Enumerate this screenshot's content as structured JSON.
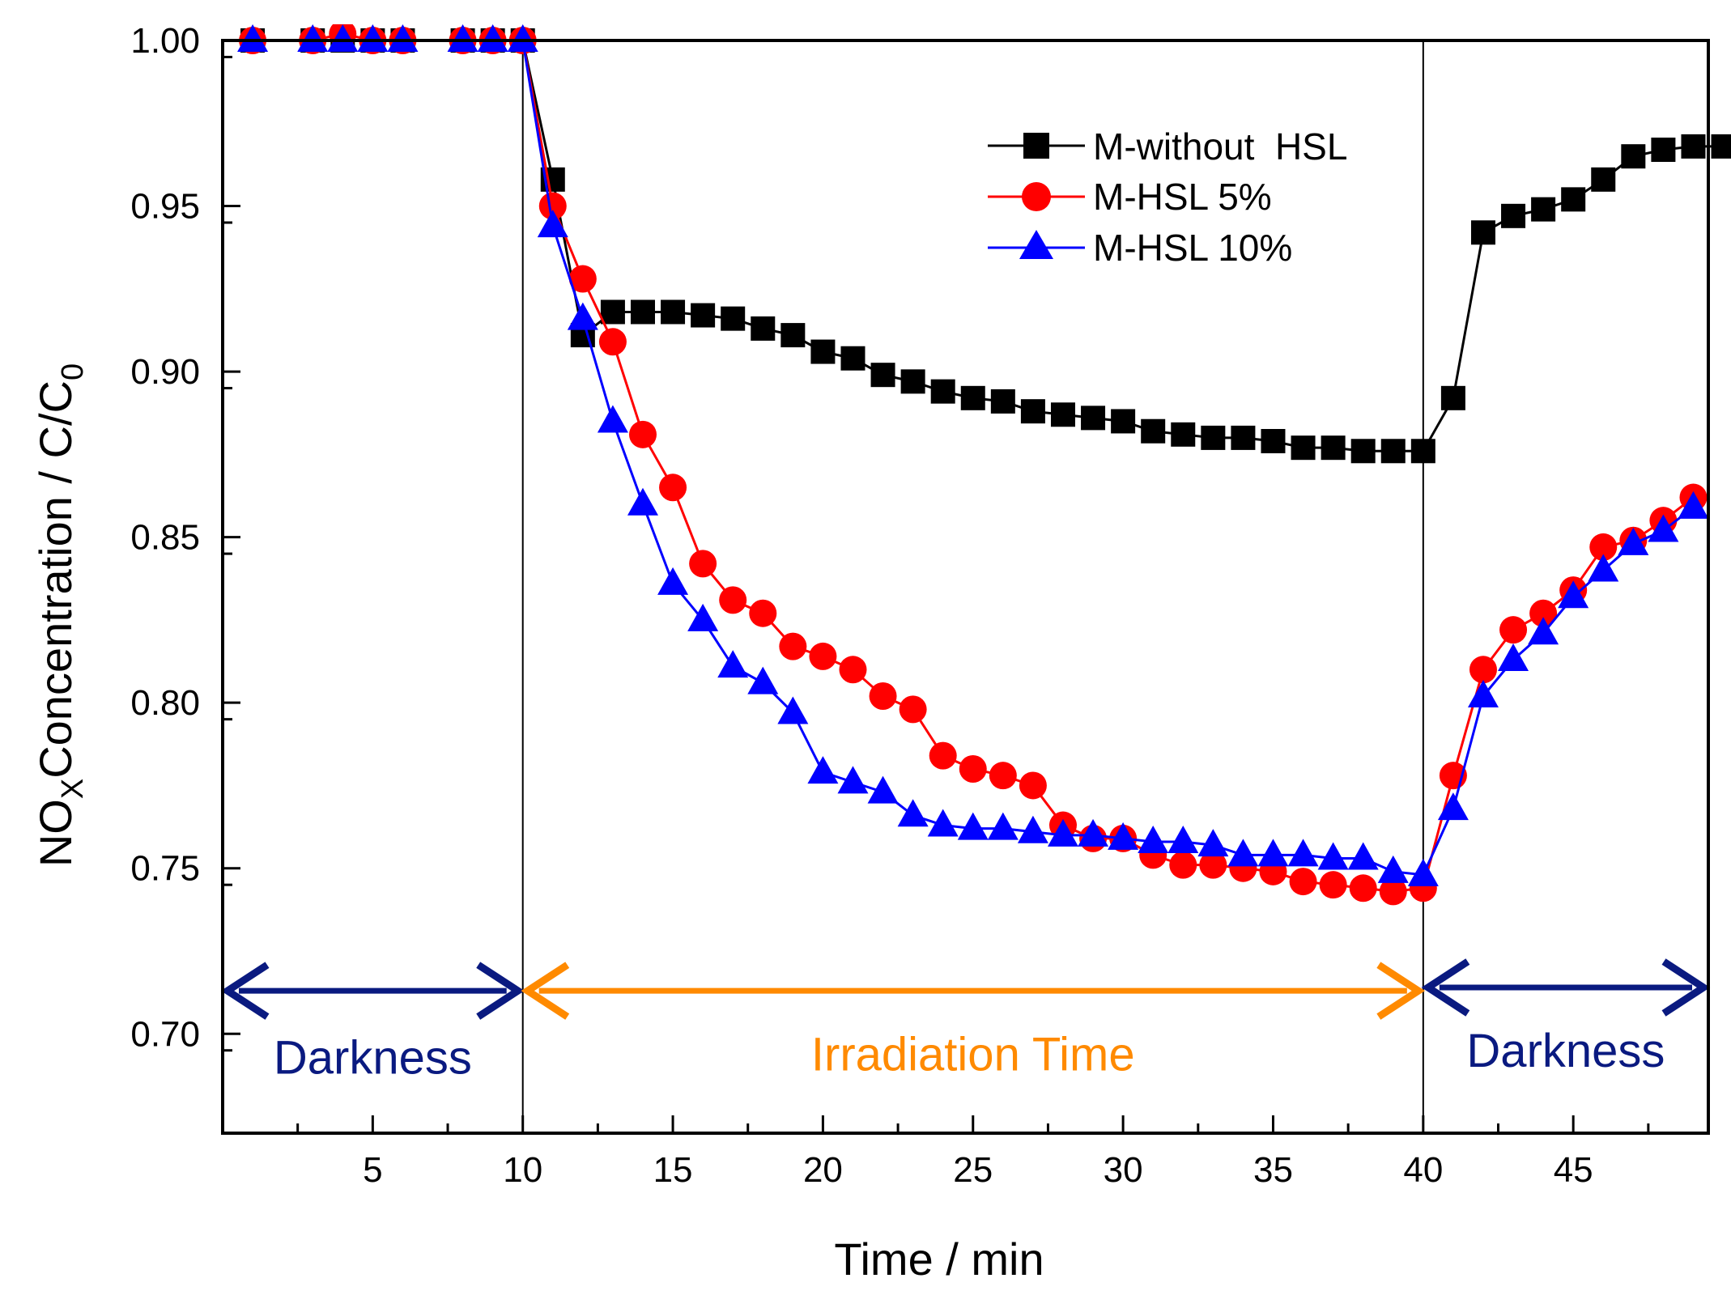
{
  "chart_data": {
    "type": "line",
    "title": "",
    "xlabel": "Time / min",
    "ylabel": {
      "prefix": "NO",
      "sub1": "X",
      "middle": "Concentration / C/C",
      "sub2": "0"
    },
    "xlim": [
      0,
      49.5
    ],
    "ylim": [
      0.67,
      1.0
    ],
    "xticks": [
      5,
      10,
      15,
      20,
      25,
      30,
      35,
      40,
      45
    ],
    "yticks": [
      0.7,
      0.75,
      0.8,
      0.85,
      0.9,
      0.95,
      1.0
    ],
    "xtick_labels": [
      "5",
      "10",
      "15",
      "20",
      "25",
      "30",
      "35",
      "40",
      "45"
    ],
    "ytick_labels": [
      "0.70",
      "0.75",
      "0.80",
      "0.85",
      "0.90",
      "0.95",
      "1.00"
    ],
    "vlines": [
      10,
      40
    ],
    "series": [
      {
        "name": "M-without  HSL",
        "color": "#000000",
        "marker": "square",
        "x": [
          1,
          3,
          4,
          5,
          6,
          8,
          9,
          10,
          11,
          12,
          13,
          14,
          15,
          16,
          17,
          18,
          19,
          20,
          21,
          22,
          23,
          24,
          25,
          26,
          27,
          28,
          29,
          30,
          31,
          32,
          33,
          34,
          35,
          36,
          37,
          38,
          39,
          40,
          41,
          42,
          43,
          44,
          45,
          46,
          47,
          48,
          49,
          50
        ],
        "y": [
          1.0,
          1.0,
          1.0,
          1.0,
          1.0,
          1.0,
          1.0,
          1.0,
          0.958,
          0.911,
          0.918,
          0.918,
          0.918,
          0.917,
          0.916,
          0.913,
          0.911,
          0.906,
          0.904,
          0.899,
          0.897,
          0.894,
          0.892,
          0.891,
          0.888,
          0.887,
          0.886,
          0.885,
          0.882,
          0.881,
          0.88,
          0.88,
          0.879,
          0.877,
          0.877,
          0.876,
          0.876,
          0.876,
          0.892,
          0.942,
          0.947,
          0.949,
          0.952,
          0.958,
          0.965,
          0.967,
          0.968,
          0.968
        ]
      },
      {
        "name": "M-HSL 5%",
        "color": "#ff0000",
        "marker": "circle",
        "x": [
          1,
          3,
          4,
          5,
          6,
          8,
          9,
          10,
          11,
          12,
          13,
          14,
          15,
          16,
          17,
          18,
          19,
          20,
          21,
          22,
          23,
          24,
          25,
          26,
          27,
          28,
          29,
          30,
          31,
          32,
          33,
          34,
          35,
          36,
          37,
          38,
          39,
          40,
          41,
          42,
          43,
          44,
          45,
          46,
          47,
          48,
          49
        ],
        "y": [
          1.0,
          1.0,
          1.002,
          1.0,
          1.0,
          1.0,
          1.0,
          1.0,
          0.95,
          0.928,
          0.909,
          0.881,
          0.865,
          0.842,
          0.831,
          0.827,
          0.817,
          0.814,
          0.81,
          0.802,
          0.798,
          0.784,
          0.78,
          0.778,
          0.775,
          0.763,
          0.759,
          0.759,
          0.754,
          0.751,
          0.751,
          0.75,
          0.749,
          0.746,
          0.745,
          0.744,
          0.743,
          0.744,
          0.778,
          0.81,
          0.822,
          0.827,
          0.834,
          0.847,
          0.849,
          0.855,
          0.862
        ]
      },
      {
        "name": "M-HSL 10%",
        "color": "#0000ff",
        "marker": "triangle",
        "x": [
          1,
          3,
          4,
          5,
          6,
          8,
          9,
          10,
          11,
          12,
          13,
          14,
          15,
          16,
          17,
          18,
          19,
          20,
          21,
          22,
          23,
          24,
          25,
          26,
          27,
          28,
          29,
          30,
          31,
          32,
          33,
          34,
          35,
          36,
          37,
          38,
          39,
          40,
          41,
          42,
          43,
          44,
          45,
          46,
          47,
          48,
          49
        ],
        "y": [
          1.0,
          1.0,
          1.0,
          1.0,
          1.0,
          1.0,
          1.0,
          1.0,
          0.944,
          0.916,
          0.885,
          0.86,
          0.836,
          0.825,
          0.811,
          0.806,
          0.797,
          0.779,
          0.776,
          0.773,
          0.766,
          0.763,
          0.762,
          0.762,
          0.761,
          0.76,
          0.76,
          0.759,
          0.758,
          0.758,
          0.757,
          0.754,
          0.754,
          0.754,
          0.753,
          0.753,
          0.749,
          0.748,
          0.768,
          0.802,
          0.813,
          0.821,
          0.832,
          0.84,
          0.848,
          0.852,
          0.859
        ]
      }
    ],
    "annotations": [
      {
        "label": "Darkness",
        "color": "#0a1a80",
        "x_range": [
          0,
          10
        ],
        "y": 0.713,
        "text_y": 0.688
      },
      {
        "label": "Irradiation Time",
        "color": "#ff8a00",
        "x_range": [
          10,
          40
        ],
        "y": 0.713,
        "text_y": 0.689
      },
      {
        "label": "Darkness",
        "color": "#0a1a80",
        "x_range": [
          40,
          49.5
        ],
        "y": 0.714,
        "text_y": 0.69
      }
    ],
    "legend_position": "top-right"
  }
}
